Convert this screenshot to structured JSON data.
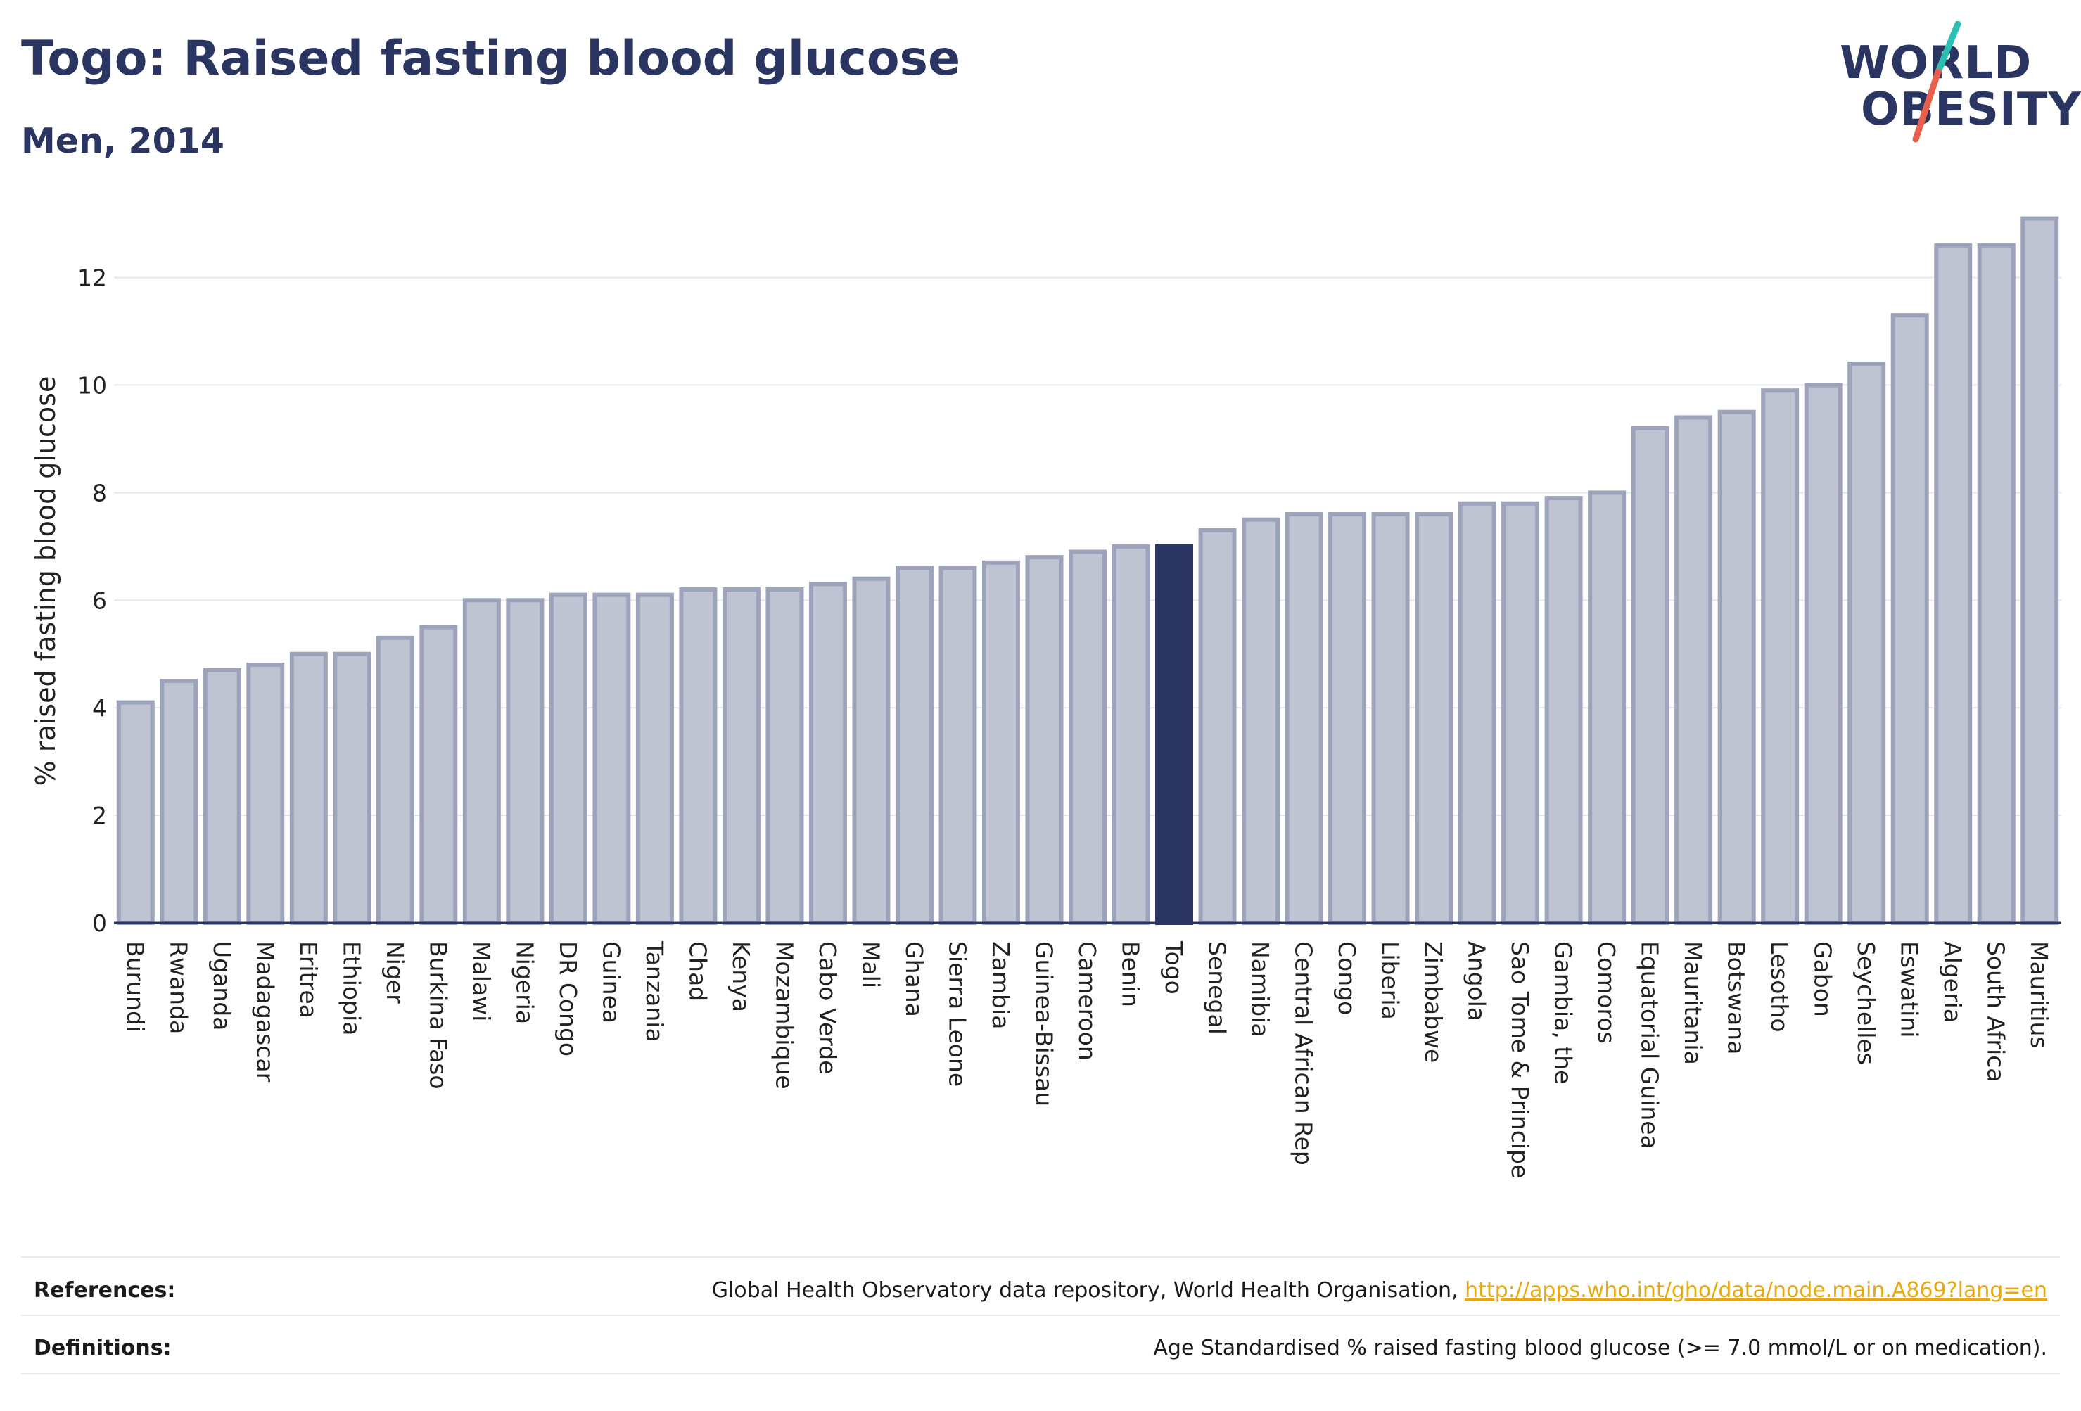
{
  "header": {
    "title": "Togo: Raised fasting blood glucose",
    "subtitle": "Men, 2014"
  },
  "logo": {
    "line1": "WORLD",
    "line2": "OBESITY",
    "accent_colors": [
      "#2bbfb3",
      "#e8604c"
    ]
  },
  "colors": {
    "bar_default": "#bfc3d2",
    "bar_stroke": "#9da3bb",
    "bar_highlight": "#2b3561",
    "grid": "#e6e7ee",
    "axis": "#2b3561",
    "link": "#e8a90c"
  },
  "chart_data": {
    "type": "bar",
    "ylabel": "% raised fasting blood glucose",
    "ylim": [
      0,
      13.5
    ],
    "yticks": [
      0,
      2,
      4,
      6,
      8,
      10,
      12
    ],
    "grid": true,
    "highlight": "Togo",
    "categories": [
      "Burundi",
      "Rwanda",
      "Uganda",
      "Madagascar",
      "Eritrea",
      "Ethiopia",
      "Niger",
      "Burkina Faso",
      "Malawi",
      "Nigeria",
      "DR Congo",
      "Guinea",
      "Tanzania",
      "Chad",
      "Kenya",
      "Mozambique",
      "Cabo Verde",
      "Mali",
      "Ghana",
      "Sierra Leone",
      "Zambia",
      "Guinea-Bissau",
      "Cameroon",
      "Benin",
      "Togo",
      "Senegal",
      "Namibia",
      "Central African Rep",
      "Congo",
      "Liberia",
      "Zimbabwe",
      "Angola",
      "Sao Tome & Principe",
      "Gambia, the",
      "Comoros",
      "Equatorial Guinea",
      "Mauritania",
      "Botswana",
      "Lesotho",
      "Gabon",
      "Seychelles",
      "Eswatini",
      "Algeria",
      "South Africa",
      "Mauritius"
    ],
    "values": [
      4.1,
      4.5,
      4.7,
      4.8,
      5.0,
      5.0,
      5.3,
      5.5,
      6.0,
      6.0,
      6.1,
      6.1,
      6.1,
      6.2,
      6.2,
      6.2,
      6.3,
      6.4,
      6.6,
      6.6,
      6.7,
      6.8,
      6.9,
      7.0,
      7.0,
      7.3,
      7.5,
      7.6,
      7.6,
      7.6,
      7.6,
      7.8,
      7.8,
      7.9,
      8.0,
      9.2,
      9.4,
      9.5,
      9.9,
      10.0,
      10.4,
      11.3,
      12.6,
      12.6,
      13.1
    ]
  },
  "footer": {
    "references_label": "References:",
    "references_text": "Global Health Observatory data repository, World Health Organisation, ",
    "references_link": "http://apps.who.int/gho/data/node.main.A869?lang=en",
    "definitions_label": "Definitions:",
    "definitions_text": "Age Standardised % raised fasting blood glucose (>= 7.0 mmol/L or on medication)."
  }
}
